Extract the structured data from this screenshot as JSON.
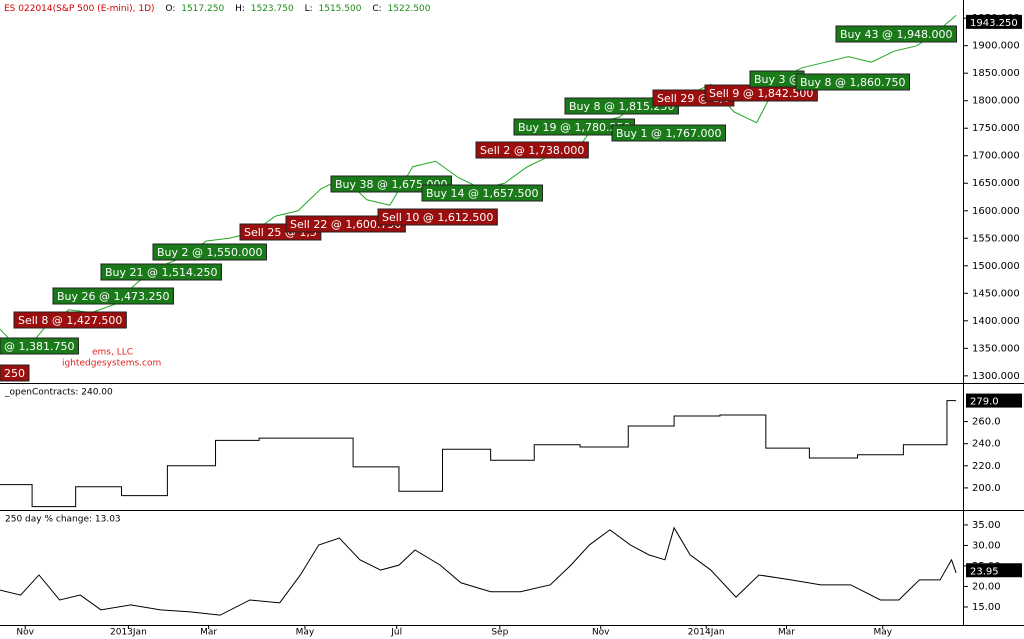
{
  "header": {
    "symbol": "ES 022014(S&P 500 (E-mini), 1D)",
    "ohlc": [
      {
        "label": "O:",
        "value": "1517.250"
      },
      {
        "label": "H:",
        "value": "1523.750"
      },
      {
        "label": "L:",
        "value": "1515.500"
      },
      {
        "label": "C:",
        "value": "1522.500"
      }
    ]
  },
  "chart_data": [
    {
      "type": "line",
      "color": "#22a822",
      "x": [
        0,
        10,
        20,
        30,
        40,
        50,
        60,
        70,
        80,
        90,
        100,
        110,
        120,
        130,
        140,
        150,
        160,
        170,
        180,
        190,
        200,
        210,
        220,
        230,
        240,
        250,
        260,
        270,
        280,
        290,
        300,
        310,
        320,
        330,
        340,
        350,
        360,
        370,
        380,
        390,
        400,
        410,
        417
      ],
      "values": [
        1385,
        1340,
        1390,
        1420,
        1415,
        1430,
        1470,
        1500,
        1515,
        1545,
        1550,
        1560,
        1590,
        1600,
        1640,
        1660,
        1620,
        1610,
        1680,
        1690,
        1660,
        1640,
        1650,
        1680,
        1700,
        1700,
        1760,
        1770,
        1800,
        1790,
        1810,
        1830,
        1780,
        1760,
        1840,
        1860,
        1870,
        1880,
        1870,
        1890,
        1900,
        1930,
        1955
      ],
      "ylim": [
        1287,
        1983
      ],
      "yticks": [
        {
          "value": 1300,
          "label": "1300.000"
        },
        {
          "value": 1350,
          "label": "1350.000"
        },
        {
          "value": 1400,
          "label": "1400.000"
        },
        {
          "value": 1450,
          "label": "1450.000"
        },
        {
          "value": 1500,
          "label": "1500.000"
        },
        {
          "value": 1550,
          "label": "1550.000"
        },
        {
          "value": 1600,
          "label": "1600.000"
        },
        {
          "value": 1650,
          "label": "1650.000"
        },
        {
          "value": 1700,
          "label": "1700.000"
        },
        {
          "value": 1750,
          "label": "1750.000"
        },
        {
          "value": 1800,
          "label": "1800.000"
        },
        {
          "value": 1850,
          "label": "1850.000"
        },
        {
          "value": 1900,
          "label": "1900.000"
        },
        {
          "value": 1950,
          "label": "1950.000"
        }
      ],
      "last_value": {
        "value": 1943.25,
        "label": "1943.250"
      },
      "watermark": [
        "ems, LLC",
        "ightedgesystems.com"
      ],
      "trades": [
        {
          "label": "@ 1,381.750",
          "color": "#1a7a1a"
        },
        {
          "label": "250",
          "color": "#9c0e0e"
        },
        {
          "label": "Sell 8 @ 1,427.500",
          "color": "#9c0e0e"
        },
        {
          "label": "Buy 26 @ 1,473.250",
          "color": "#1a7a1a"
        },
        {
          "label": "Buy 21 @ 1,514.250",
          "color": "#1a7a1a"
        },
        {
          "label": "Buy 2 @ 1,550.000",
          "color": "#1a7a1a"
        },
        {
          "label": "Sell 25 @ 1,5",
          "color": "#9c0e0e"
        },
        {
          "label": "Sell 22 @ 1,600.750",
          "color": "#9c0e0e"
        },
        {
          "label": "Buy 38 @ 1,675.000",
          "color": "#1a7a1a"
        },
        {
          "label": "Sell 10 @ 1,612.500",
          "color": "#9c0e0e"
        },
        {
          "label": "Buy 14 @ 1,657.500",
          "color": "#1a7a1a"
        },
        {
          "label": "Sell 2 @ 1,738.000",
          "color": "#9c0e0e"
        },
        {
          "label": "Buy 19 @ 1,780.250",
          "color": "#1a7a1a"
        },
        {
          "label": "Buy 8 @ 1,815.250",
          "color": "#1a7a1a"
        },
        {
          "label": "Buy 1 @ 1,767.000",
          "color": "#1a7a1a"
        },
        {
          "label": "Sell 29 @ 1,8",
          "color": "#9c0e0e"
        },
        {
          "label": "Sell 9 @ 1,842.500",
          "color": "#9c0e0e"
        },
        {
          "label": "Buy 3 @",
          "color": "#1a7a1a"
        },
        {
          "label": "Buy 8 @ 1,860.750",
          "color": "#1a7a1a"
        },
        {
          "label": "Buy 43 @ 1,948.000",
          "color": "#1a7a1a"
        }
      ]
    },
    {
      "type": "step",
      "title": "_openContracts: 240.00",
      "color": "#000000",
      "x": [
        0,
        14,
        33,
        53,
        73,
        94,
        113,
        154,
        174,
        193,
        214,
        233,
        253,
        274,
        294,
        314,
        334,
        353,
        374,
        394,
        413,
        417
      ],
      "values": [
        203,
        183,
        201,
        193,
        220,
        243,
        245,
        219,
        197,
        235,
        225,
        239,
        237,
        256,
        265,
        266,
        236,
        227,
        230,
        239,
        279,
        279
      ],
      "ylim": [
        180,
        294
      ],
      "yticks": [
        {
          "value": 200,
          "label": "200.0"
        },
        {
          "value": 220,
          "label": "220.0"
        },
        {
          "value": 240,
          "label": "240.0"
        },
        {
          "value": 260,
          "label": "260.0"
        }
      ],
      "last_value": {
        "value": 279,
        "label": "279.0"
      }
    },
    {
      "type": "line",
      "title": "250 day % change: 13.03",
      "color": "#000000",
      "x": [
        0,
        9,
        17,
        26,
        35,
        44,
        57,
        70,
        83,
        96,
        109,
        122,
        131,
        139,
        148,
        157,
        166,
        174,
        181,
        192,
        201,
        214,
        227,
        240,
        249,
        257,
        266,
        275,
        283,
        290,
        294,
        301,
        310,
        321,
        331,
        345,
        358,
        371,
        384,
        392,
        401,
        410,
        415,
        417
      ],
      "values": [
        19.1,
        17.9,
        22.8,
        16.7,
        17.9,
        14.3,
        15.5,
        14.3,
        13.8,
        13.0,
        16.7,
        16.0,
        22.8,
        30.1,
        31.8,
        26.5,
        24.0,
        25.2,
        28.9,
        25.2,
        20.9,
        18.7,
        18.7,
        20.4,
        25.2,
        30.1,
        33.8,
        30.1,
        27.7,
        26.5,
        34.3,
        27.7,
        24.0,
        17.4,
        22.8,
        21.6,
        20.4,
        20.4,
        16.7,
        16.7,
        21.6,
        21.6,
        26.5,
        23.3
      ],
      "ylim": [
        10.6,
        38.4
      ],
      "yticks": [
        {
          "value": 15,
          "label": "15.00"
        },
        {
          "value": 20,
          "label": "20.00"
        },
        {
          "value": 25,
          "label": "25.00"
        },
        {
          "value": 30,
          "label": "30.00"
        },
        {
          "value": 35,
          "label": "35.00"
        }
      ],
      "last_value": {
        "value": 23.95,
        "label": "23.95"
      },
      "xlim": [
        0,
        420
      ],
      "xticks": [
        {
          "value": 11,
          "label": "Nov"
        },
        {
          "value": 56,
          "label": "2013Jan"
        },
        {
          "value": 91,
          "label": "Mar"
        },
        {
          "value": 133,
          "label": "May"
        },
        {
          "value": 173,
          "label": "Jul"
        },
        {
          "value": 218,
          "label": "Sep"
        },
        {
          "value": 262,
          "label": "Nov"
        },
        {
          "value": 308,
          "label": "2014Jan"
        },
        {
          "value": 343,
          "label": "Mar"
        },
        {
          "value": 385,
          "label": "May"
        }
      ]
    }
  ]
}
